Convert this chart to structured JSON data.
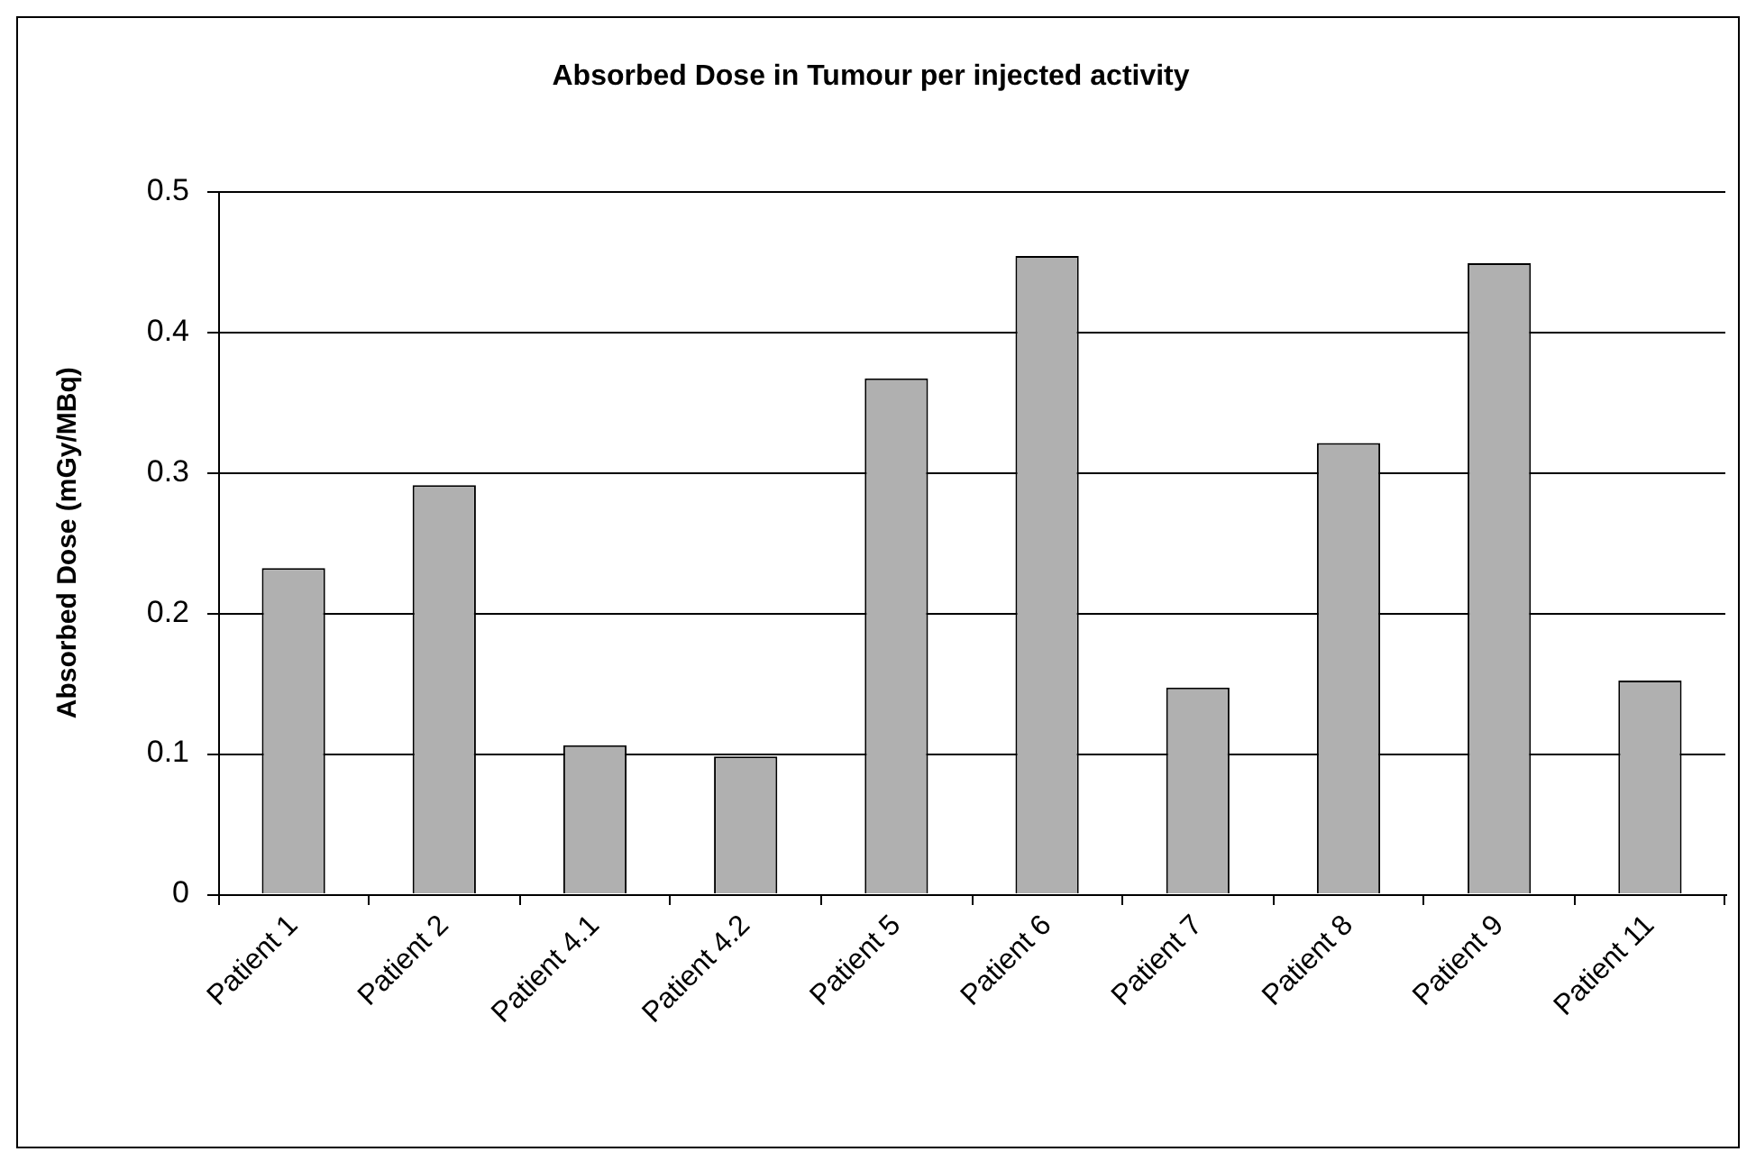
{
  "chart_data": {
    "type": "bar",
    "title": "Absorbed Dose in Tumour per injected activity",
    "ylabel": "Absorbed Dose (mGy/MBq)",
    "categories": [
      "Patient 1",
      "Patient 2",
      "Patient 4.1",
      "Patient 4.2",
      "Patient 5",
      "Patient 6",
      "Patient 7",
      "Patient 8",
      "Patient 9",
      "Patient 11"
    ],
    "values": [
      0.232,
      0.291,
      0.106,
      0.098,
      0.367,
      0.454,
      0.147,
      0.321,
      0.449,
      0.152
    ],
    "color": "#b0b0b0",
    "ylim": [
      0,
      0.5
    ],
    "yticks": [
      0,
      0.1,
      0.2,
      0.3,
      0.4,
      0.5
    ],
    "grid": "y"
  }
}
